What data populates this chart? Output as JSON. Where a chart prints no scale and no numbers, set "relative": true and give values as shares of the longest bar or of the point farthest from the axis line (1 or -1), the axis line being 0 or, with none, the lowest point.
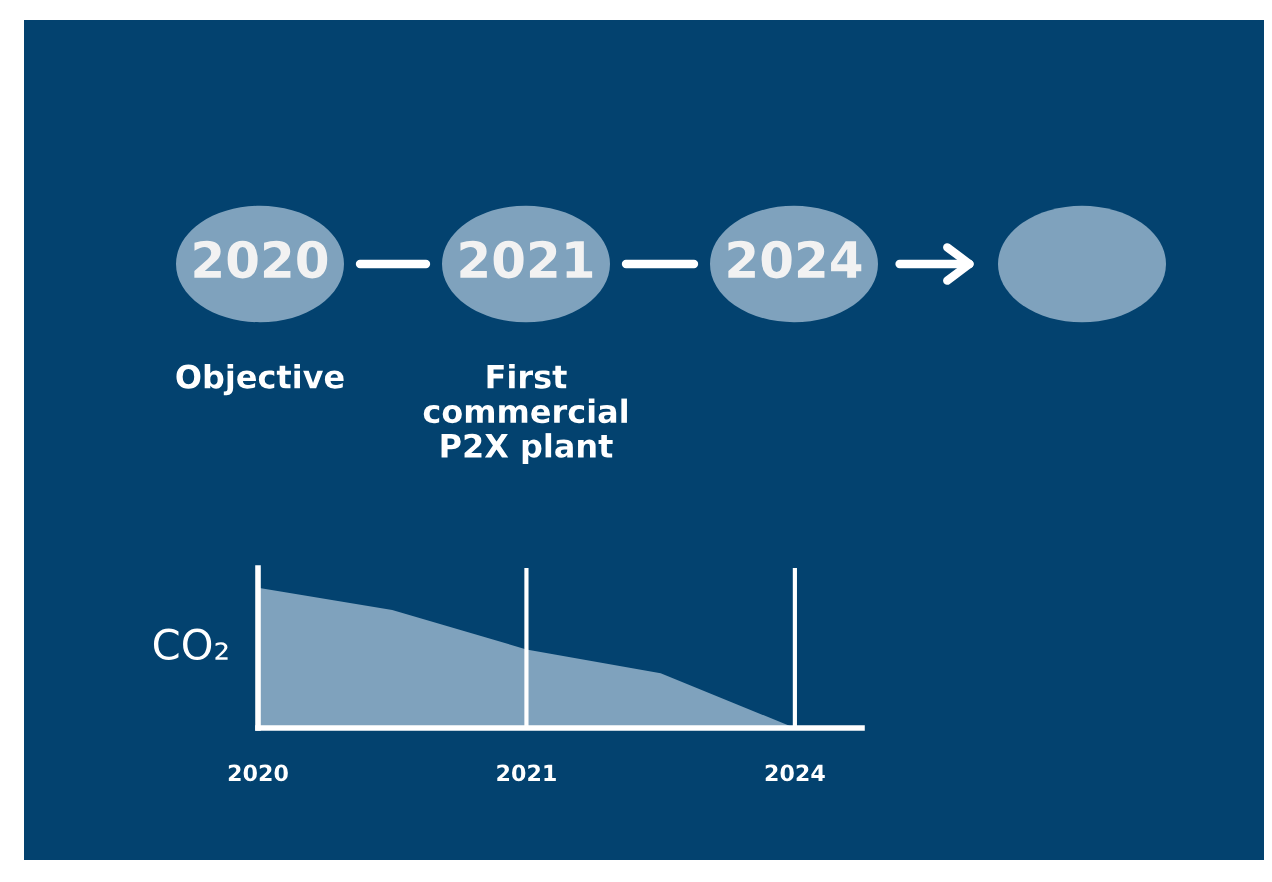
{
  "chart_data": {
    "type": "area",
    "relative": true,
    "ylabel": "CO₂",
    "annotations": [
      "2020",
      "2021",
      "2024",
      "Objective",
      "First\ncommercial\nP2X plant"
    ],
    "categories": [
      "2020",
      null,
      "2021",
      null,
      "2024"
    ],
    "series": [
      {
        "color": "#7fa2bd",
        "values": [
          1,
          0.84,
          0.56,
          0.39,
          0
        ]
      }
    ],
    "grid": "x",
    "legend": false
  }
}
